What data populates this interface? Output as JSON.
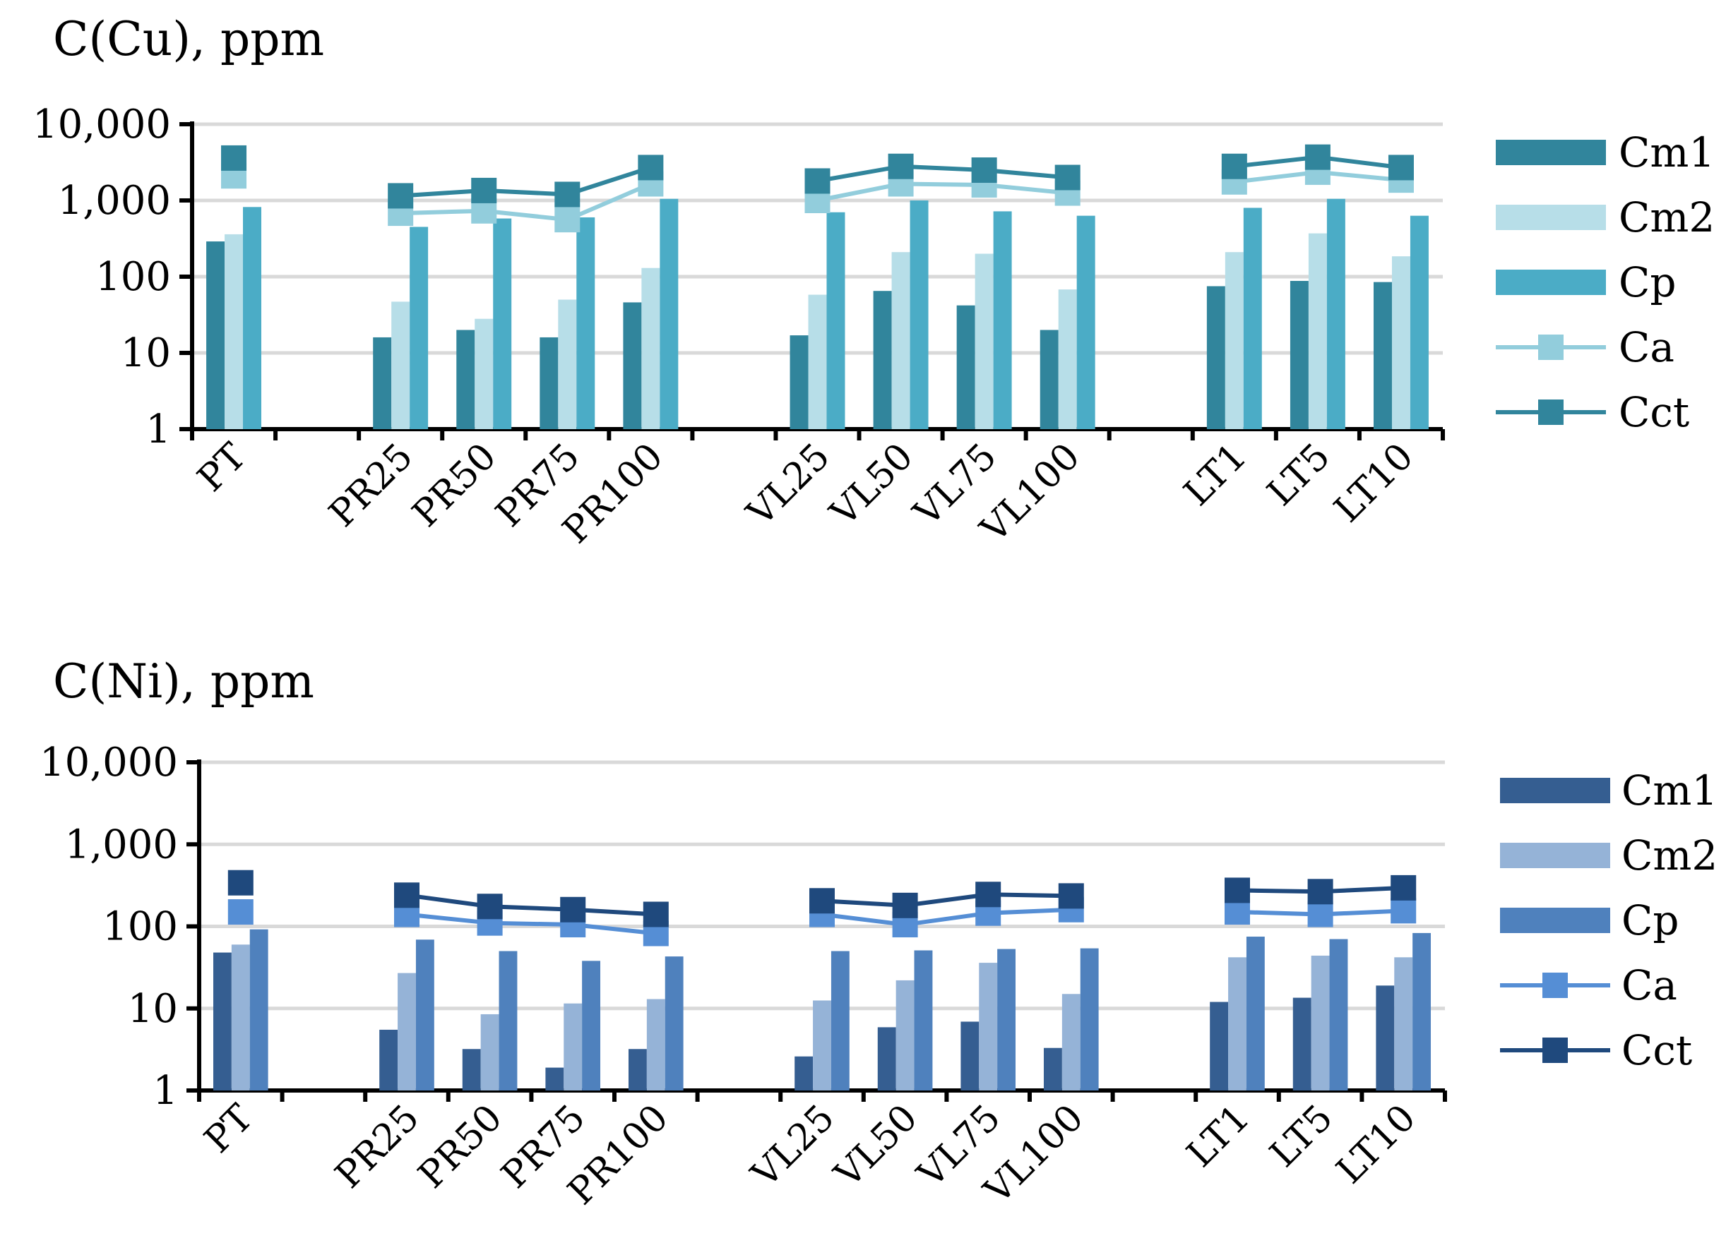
{
  "chart_data": [
    {
      "type": "bar",
      "title": "C(Cu), ppm",
      "yscale": "log",
      "ylim": [
        1,
        10000
      ],
      "yticks": [
        "1",
        "10",
        "100",
        "1,000",
        "10,000"
      ],
      "categories": [
        "PT",
        "",
        "PR25",
        "PR50",
        "PR75",
        "PR100",
        "",
        "VL25",
        "VL50",
        "VL75",
        "VL100",
        "",
        "LT1",
        "LT5",
        "LT10"
      ],
      "series": [
        {
          "name": "Cm1",
          "kind": "bar",
          "color": "#31859c",
          "values": [
            290,
            null,
            16,
            20,
            16,
            46,
            null,
            17,
            65,
            42,
            20,
            null,
            75,
            88,
            85
          ]
        },
        {
          "name": "Cm2",
          "kind": "bar",
          "color": "#b7dee8",
          "values": [
            360,
            null,
            47,
            28,
            50,
            130,
            null,
            58,
            210,
            200,
            68,
            null,
            210,
            370,
            185
          ]
        },
        {
          "name": "Cp",
          "kind": "bar",
          "color": "#4bacc6",
          "values": [
            820,
            null,
            450,
            580,
            600,
            1050,
            null,
            700,
            1000,
            720,
            630,
            null,
            800,
            1050,
            630
          ]
        },
        {
          "name": "Ca",
          "kind": "line",
          "color": "#92cddc",
          "values": [
            2100,
            null,
            680,
            730,
            560,
            1650,
            null,
            1000,
            1650,
            1600,
            1250,
            null,
            1750,
            2350,
            1850
          ]
        },
        {
          "name": "Cct",
          "kind": "line",
          "color": "#31859c",
          "values": [
            3600,
            null,
            1150,
            1350,
            1200,
            2700,
            null,
            1800,
            2800,
            2500,
            2000,
            null,
            2800,
            3700,
            2700
          ]
        }
      ],
      "legend": "right"
    },
    {
      "type": "bar",
      "title": "C(Ni), ppm",
      "yscale": "log",
      "ylim": [
        1,
        10000
      ],
      "yticks": [
        "1",
        "10",
        "100",
        "1,000",
        "10,000"
      ],
      "categories": [
        "PT",
        "",
        "PR25",
        "PR50",
        "PR75",
        "PR100",
        "",
        "VL25",
        "VL50",
        "VL75",
        "VL100",
        "",
        "LT1",
        "LT5",
        "LT10"
      ],
      "series": [
        {
          "name": "Cm1",
          "kind": "bar",
          "color": "#355e91",
          "values": [
            48,
            null,
            5.5,
            3.2,
            1.9,
            3.2,
            null,
            2.6,
            5.9,
            6.9,
            3.3,
            null,
            12,
            13.5,
            19
          ]
        },
        {
          "name": "Cm2",
          "kind": "bar",
          "color": "#95b3d7",
          "values": [
            60,
            null,
            27,
            8.5,
            11.5,
            13,
            null,
            12.5,
            22,
            36,
            15,
            null,
            42,
            44,
            42
          ]
        },
        {
          "name": "Cp",
          "kind": "bar",
          "color": "#4f81bd",
          "values": [
            92,
            null,
            69,
            50,
            38,
            43,
            null,
            50,
            51,
            53,
            54,
            null,
            75,
            70,
            83
          ]
        },
        {
          "name": "Ca",
          "kind": "line",
          "color": "#558ed5",
          "values": [
            150,
            null,
            140,
            110,
            105,
            82,
            null,
            140,
            105,
            145,
            160,
            null,
            150,
            140,
            155
          ]
        },
        {
          "name": "Cct",
          "kind": "line",
          "color": "#1f497d",
          "values": [
            340,
            null,
            240,
            175,
            160,
            140,
            null,
            205,
            180,
            245,
            235,
            null,
            275,
            265,
            295
          ]
        }
      ],
      "legend": "right"
    }
  ]
}
